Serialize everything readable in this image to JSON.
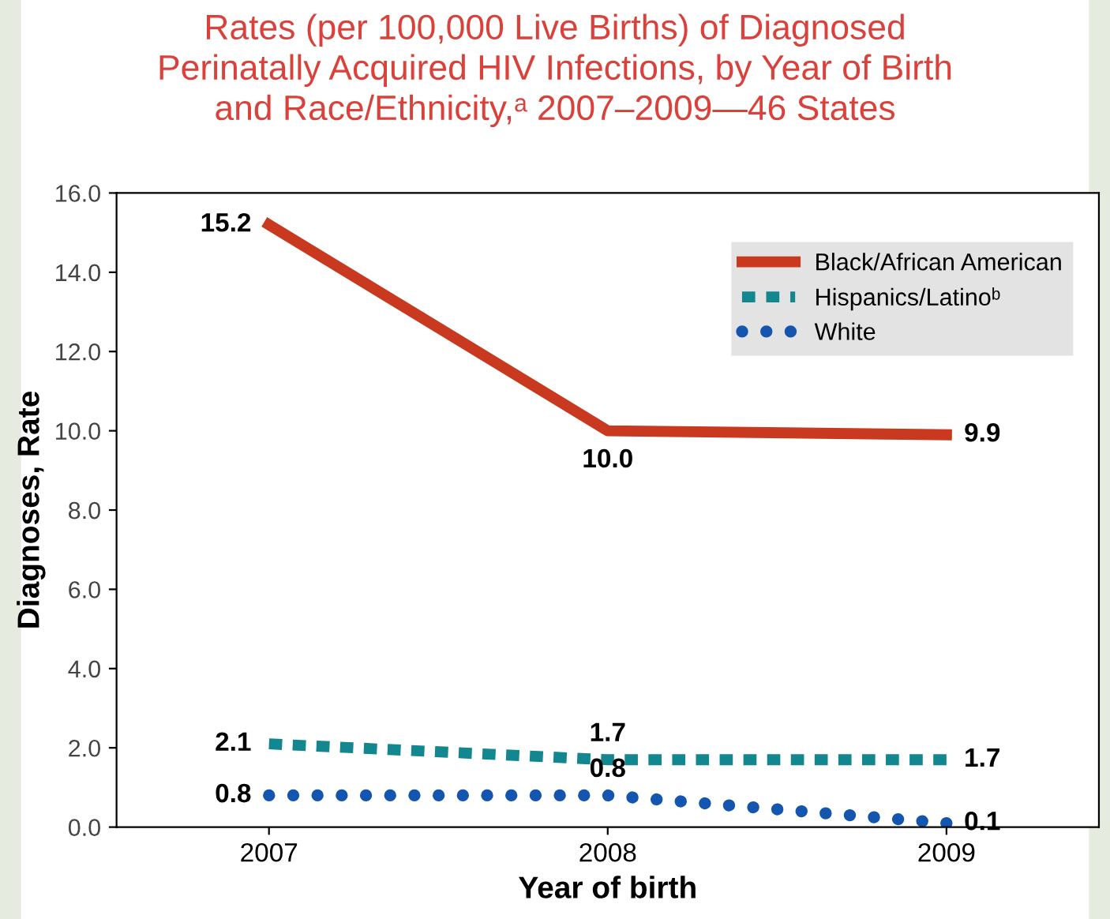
{
  "chart_data": {
    "type": "line",
    "title": "Rates (per 100,000 Live Births) of Diagnosed\nPerinatally Acquired HIV Infections, by Year of Birth\nand Race/Ethnicity,ᵃ 2007–2009—46 States",
    "xlabel": "Year of birth",
    "ylabel": "Diagnoses, Rate",
    "categories": [
      "2007",
      "2008",
      "2009"
    ],
    "series": [
      {
        "name": "Black/African American",
        "color": "#c8391f",
        "values": [
          15.2,
          10.0,
          9.9
        ],
        "value_labels": [
          "15.2",
          "10.0",
          "9.9"
        ],
        "line_style": "solid"
      },
      {
        "name": "Hispanics/Latinoᵇ",
        "color": "#13878f",
        "values": [
          2.1,
          1.7,
          1.7
        ],
        "value_labels": [
          "2.1",
          "1.7",
          "1.7"
        ],
        "line_style": "dashed"
      },
      {
        "name": "White",
        "color": "#1455b0",
        "values": [
          0.8,
          0.8,
          0.1
        ],
        "value_labels": [
          "0.8",
          "0.8",
          "0.1"
        ],
        "line_style": "dotted"
      }
    ],
    "ylim": [
      0,
      16
    ],
    "yticks": [
      {
        "value": 0,
        "label": "0.0"
      },
      {
        "value": 2,
        "label": "2.0"
      },
      {
        "value": 4,
        "label": "4.0"
      },
      {
        "value": 6,
        "label": "6.0"
      },
      {
        "value": 8,
        "label": "8.0"
      },
      {
        "value": 10,
        "label": "10.0"
      },
      {
        "value": 12,
        "label": "12.0"
      },
      {
        "value": 14,
        "label": "14.0"
      },
      {
        "value": 16,
        "label": "16.0"
      }
    ],
    "legend": "top right",
    "grid": false
  }
}
